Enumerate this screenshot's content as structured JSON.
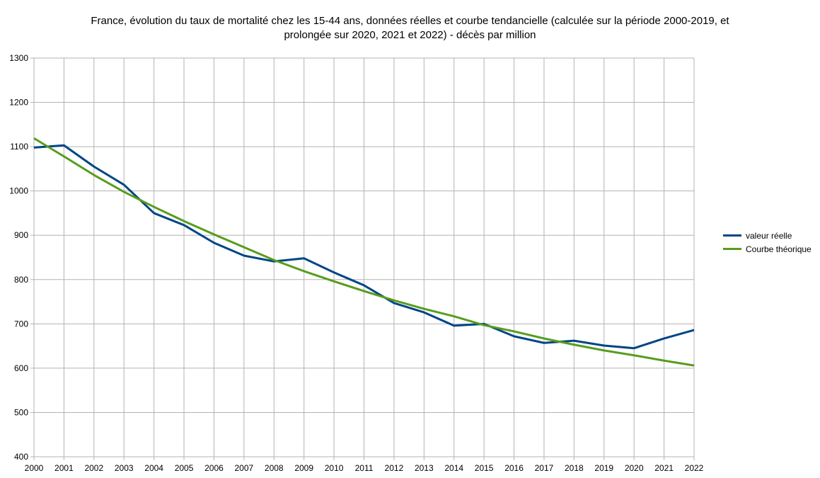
{
  "chart_data": {
    "type": "line",
    "title": "France, évolution du taux de mortalité chez les 15-44 ans, données réelles et courbe tendancielle (calculée sur la période 2000-2019, et prolongée sur 2020, 2021 et 2022) - décès par million",
    "title_lines": [
      "France, évolution du taux de mortalité chez les 15-44 ans, données réelles et courbe tendancielle (calculée sur la période 2000-2019, et",
      "prolongée sur 2020, 2021 et 2022) - décès par million"
    ],
    "xlabel": "",
    "ylabel": "",
    "x": [
      2000,
      2001,
      2002,
      2003,
      2004,
      2005,
      2006,
      2007,
      2008,
      2009,
      2010,
      2011,
      2012,
      2013,
      2014,
      2015,
      2016,
      2017,
      2018,
      2019,
      2020,
      2021,
      2022
    ],
    "ylim": [
      400,
      1300
    ],
    "yticks": [
      400,
      500,
      600,
      700,
      800,
      900,
      1000,
      1100,
      1200,
      1300
    ],
    "grid": true,
    "legend_position": "right",
    "series": [
      {
        "name": "valeur réelle",
        "color": "#004586",
        "values": [
          1098,
          1103,
          1055,
          1014,
          950,
          923,
          883,
          854,
          841,
          848,
          816,
          787,
          747,
          726,
          696,
          700,
          672,
          657,
          662,
          651,
          645,
          667,
          686
        ]
      },
      {
        "name": "Courbe théorique",
        "color": "#579d1c",
        "values": [
          1119,
          1078,
          1036,
          998,
          964,
          932,
          902,
          873,
          844,
          819,
          796,
          774,
          753,
          734,
          717,
          697,
          683,
          667,
          653,
          640,
          629,
          617,
          606
        ]
      }
    ]
  }
}
